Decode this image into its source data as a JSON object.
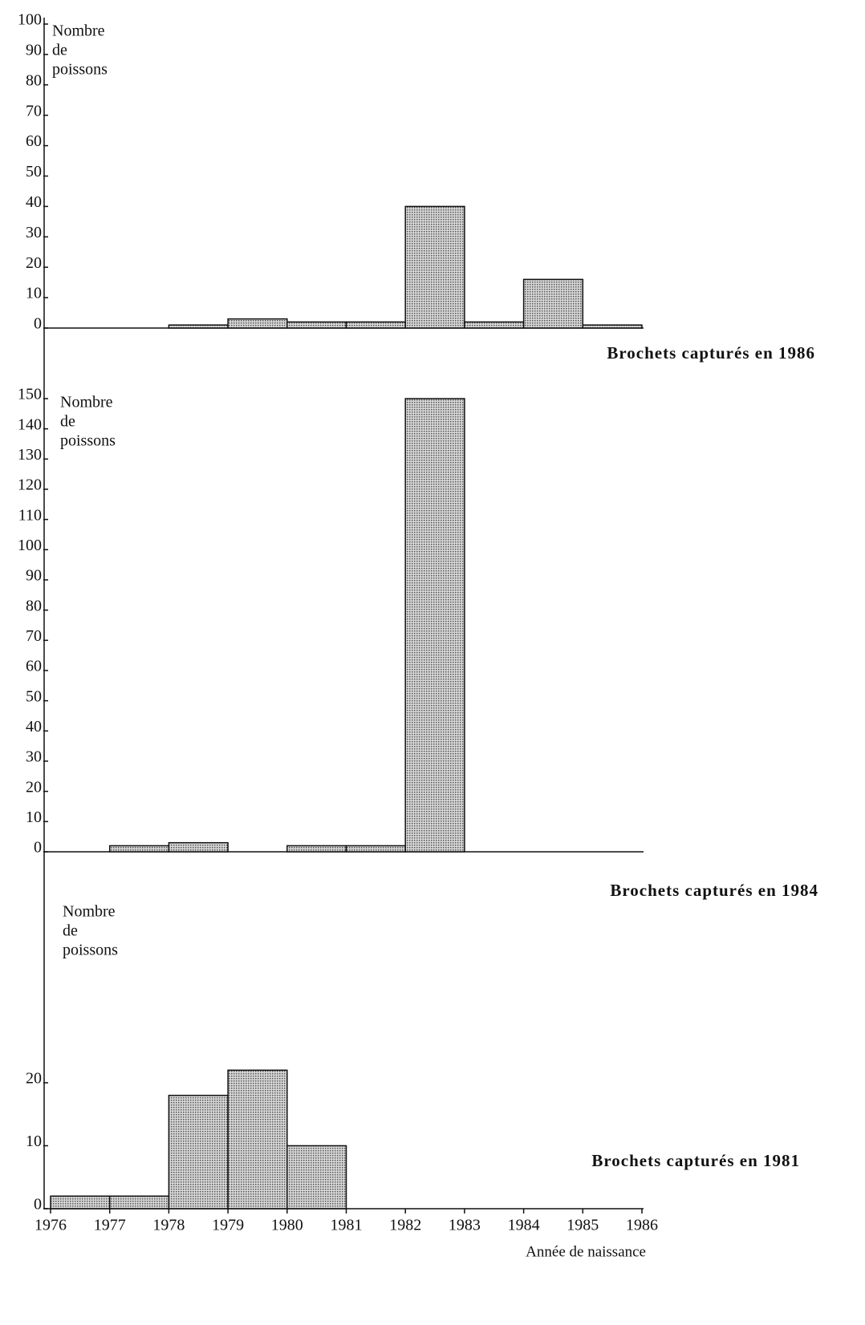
{
  "chart_data": [
    {
      "type": "histogram",
      "title": "Brochets capturés en 1986",
      "ylabel": [
        "Nombre",
        "de",
        "poissons"
      ],
      "bins": [
        1976,
        1977,
        1978,
        1979,
        1980,
        1981,
        1982,
        1983,
        1984,
        1985,
        1986
      ],
      "values": [
        0,
        0,
        1,
        3,
        2,
        2,
        40,
        2,
        16,
        1
      ],
      "color": "#a9a9a9",
      "xlim": [
        1976,
        1986
      ],
      "ylim": [
        0,
        100
      ],
      "yticks": [
        0,
        10,
        20,
        30,
        40,
        50,
        60,
        70,
        80,
        90,
        100
      ]
    },
    {
      "type": "histogram",
      "title": "Brochets capturés en 1984",
      "ylabel": [
        "Nombre",
        "de",
        "poissons"
      ],
      "bins": [
        1976,
        1977,
        1978,
        1979,
        1980,
        1981,
        1982,
        1983,
        1984,
        1985,
        1986
      ],
      "values": [
        0,
        2,
        3,
        0,
        2,
        2,
        150,
        0,
        0,
        0
      ],
      "color": "#a9a9a9",
      "xlim": [
        1976,
        1986
      ],
      "ylim": [
        0,
        150
      ],
      "yticks": [
        0,
        10,
        20,
        30,
        40,
        50,
        60,
        70,
        80,
        90,
        100,
        110,
        120,
        130,
        140,
        150
      ]
    },
    {
      "type": "histogram",
      "title": "Brochets capturés en 1981",
      "ylabel": [
        "Nombre",
        "de",
        "poissons"
      ],
      "xlabel": "Année de naissance",
      "bins": [
        1976,
        1977,
        1978,
        1979,
        1980,
        1981,
        1982,
        1983,
        1984,
        1985,
        1986
      ],
      "values": [
        2,
        2,
        18,
        22,
        10,
        0,
        0,
        0,
        0,
        0
      ],
      "color": "#a9a9a9",
      "xlim": [
        1976,
        1986
      ],
      "xticks": [
        1976,
        1977,
        1978,
        1979,
        1980,
        1981,
        1982,
        1983,
        1984,
        1985,
        1986
      ],
      "ylim": [
        0,
        20
      ],
      "yticks": [
        0,
        10,
        20
      ]
    }
  ]
}
